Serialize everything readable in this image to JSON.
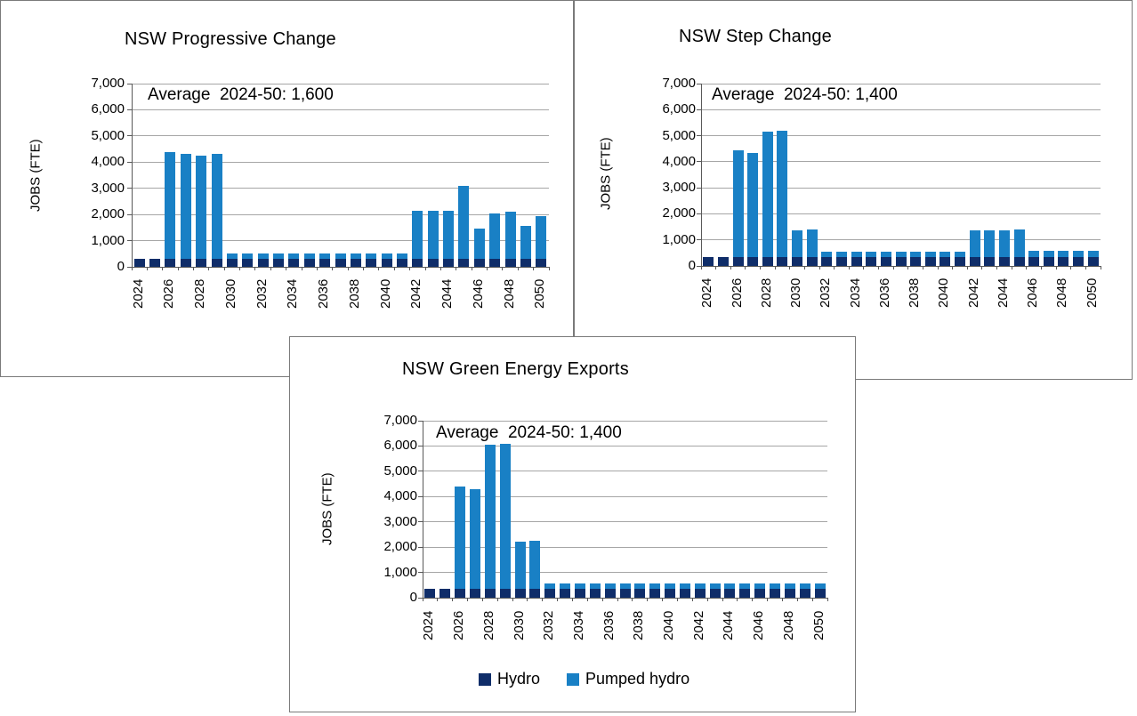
{
  "chart_data": [
    {
      "type": "bar",
      "stacked": true,
      "title": "NSW Progressive Change",
      "annotation": "Average  2024-50: 1,600",
      "ylabel": "JOBS (FTE)",
      "ylim": [
        0,
        7000
      ],
      "yticks": [
        0,
        1000,
        2000,
        3000,
        4000,
        5000,
        6000,
        7000
      ],
      "ytick_labels": [
        "0",
        "1,000",
        "2,000",
        "3,000",
        "4,000",
        "5,000",
        "6,000",
        "7,000"
      ],
      "categories": [
        "2024",
        "2025",
        "2026",
        "2027",
        "2028",
        "2029",
        "2030",
        "2031",
        "2032",
        "2033",
        "2034",
        "2035",
        "2036",
        "2037",
        "2038",
        "2039",
        "2040",
        "2041",
        "2042",
        "2043",
        "2044",
        "2045",
        "2046",
        "2047",
        "2048",
        "2049",
        "2050"
      ],
      "xticks_shown": [
        "2024",
        "2026",
        "2028",
        "2030",
        "2032",
        "2034",
        "2036",
        "2038",
        "2040",
        "2042",
        "2044",
        "2046",
        "2048",
        "2050"
      ],
      "grid": true,
      "legend_position": "none",
      "series": [
        {
          "name": "Hydro",
          "color": "#0F2D69",
          "values": [
            300,
            300,
            300,
            300,
            300,
            300,
            300,
            300,
            300,
            300,
            300,
            300,
            300,
            300,
            300,
            300,
            300,
            300,
            300,
            300,
            300,
            300,
            300,
            300,
            300,
            300,
            300
          ]
        },
        {
          "name": "Pumped hydro",
          "color": "#1980C5",
          "values": [
            0,
            0,
            4100,
            4000,
            3950,
            4000,
            200,
            200,
            200,
            200,
            200,
            200,
            200,
            200,
            200,
            200,
            200,
            200,
            1850,
            1850,
            1850,
            2800,
            1150,
            1750,
            1800,
            1250,
            1650
          ]
        }
      ]
    },
    {
      "type": "bar",
      "stacked": true,
      "title": "NSW Step Change",
      "annotation": "Average  2024-50: 1,400",
      "ylabel": "JOBS (FTE)",
      "ylim": [
        0,
        7000
      ],
      "yticks": [
        0,
        1000,
        2000,
        3000,
        4000,
        5000,
        6000,
        7000
      ],
      "ytick_labels": [
        "0",
        "1,000",
        "2,000",
        "3,000",
        "4,000",
        "5,000",
        "6,000",
        "7,000"
      ],
      "categories": [
        "2024",
        "2025",
        "2026",
        "2027",
        "2028",
        "2029",
        "2030",
        "2031",
        "2032",
        "2033",
        "2034",
        "2035",
        "2036",
        "2037",
        "2038",
        "2039",
        "2040",
        "2041",
        "2042",
        "2043",
        "2044",
        "2045",
        "2046",
        "2047",
        "2048",
        "2049",
        "2050"
      ],
      "xticks_shown": [
        "2024",
        "2026",
        "2028",
        "2030",
        "2032",
        "2034",
        "2036",
        "2038",
        "2040",
        "2042",
        "2044",
        "2046",
        "2048",
        "2050"
      ],
      "grid": true,
      "legend_position": "none",
      "series": [
        {
          "name": "Hydro",
          "color": "#0F2D69",
          "values": [
            350,
            330,
            330,
            330,
            330,
            330,
            330,
            330,
            330,
            330,
            330,
            330,
            330,
            330,
            330,
            330,
            330,
            330,
            330,
            330,
            330,
            330,
            330,
            330,
            330,
            330,
            330
          ]
        },
        {
          "name": "Pumped hydro",
          "color": "#1980C5",
          "values": [
            0,
            0,
            4120,
            4020,
            4820,
            4870,
            1020,
            1070,
            220,
            220,
            220,
            220,
            220,
            220,
            220,
            220,
            220,
            220,
            1020,
            1050,
            1050,
            1070,
            250,
            250,
            250,
            250,
            250
          ]
        }
      ]
    },
    {
      "type": "bar",
      "stacked": true,
      "title": "NSW Green Energy Exports",
      "annotation": "Average  2024-50: 1,400",
      "ylabel": "JOBS (FTE)",
      "ylim": [
        0,
        7000
      ],
      "yticks": [
        0,
        1000,
        2000,
        3000,
        4000,
        5000,
        6000,
        7000
      ],
      "ytick_labels": [
        "0",
        "1,000",
        "2,000",
        "3,000",
        "4,000",
        "5,000",
        "6,000",
        "7,000"
      ],
      "categories": [
        "2024",
        "2025",
        "2026",
        "2027",
        "2028",
        "2029",
        "2030",
        "2031",
        "2032",
        "2033",
        "2034",
        "2035",
        "2036",
        "2037",
        "2038",
        "2039",
        "2040",
        "2041",
        "2042",
        "2043",
        "2044",
        "2045",
        "2046",
        "2047",
        "2048",
        "2049",
        "2050"
      ],
      "xticks_shown": [
        "2024",
        "2026",
        "2028",
        "2030",
        "2032",
        "2034",
        "2036",
        "2038",
        "2040",
        "2042",
        "2044",
        "2046",
        "2048",
        "2050"
      ],
      "grid": true,
      "legend_position": "bottom",
      "series": [
        {
          "name": "Hydro",
          "color": "#0F2D69",
          "values": [
            350,
            350,
            350,
            350,
            350,
            350,
            350,
            350,
            350,
            350,
            350,
            350,
            350,
            350,
            350,
            350,
            350,
            350,
            350,
            350,
            350,
            350,
            350,
            350,
            350,
            350,
            350
          ]
        },
        {
          "name": "Pumped hydro",
          "color": "#1980C5",
          "values": [
            0,
            0,
            4050,
            3950,
            5700,
            5750,
            1850,
            1900,
            230,
            230,
            230,
            230,
            230,
            230,
            230,
            230,
            230,
            230,
            230,
            230,
            230,
            230,
            230,
            230,
            230,
            230,
            230
          ]
        }
      ]
    }
  ]
}
